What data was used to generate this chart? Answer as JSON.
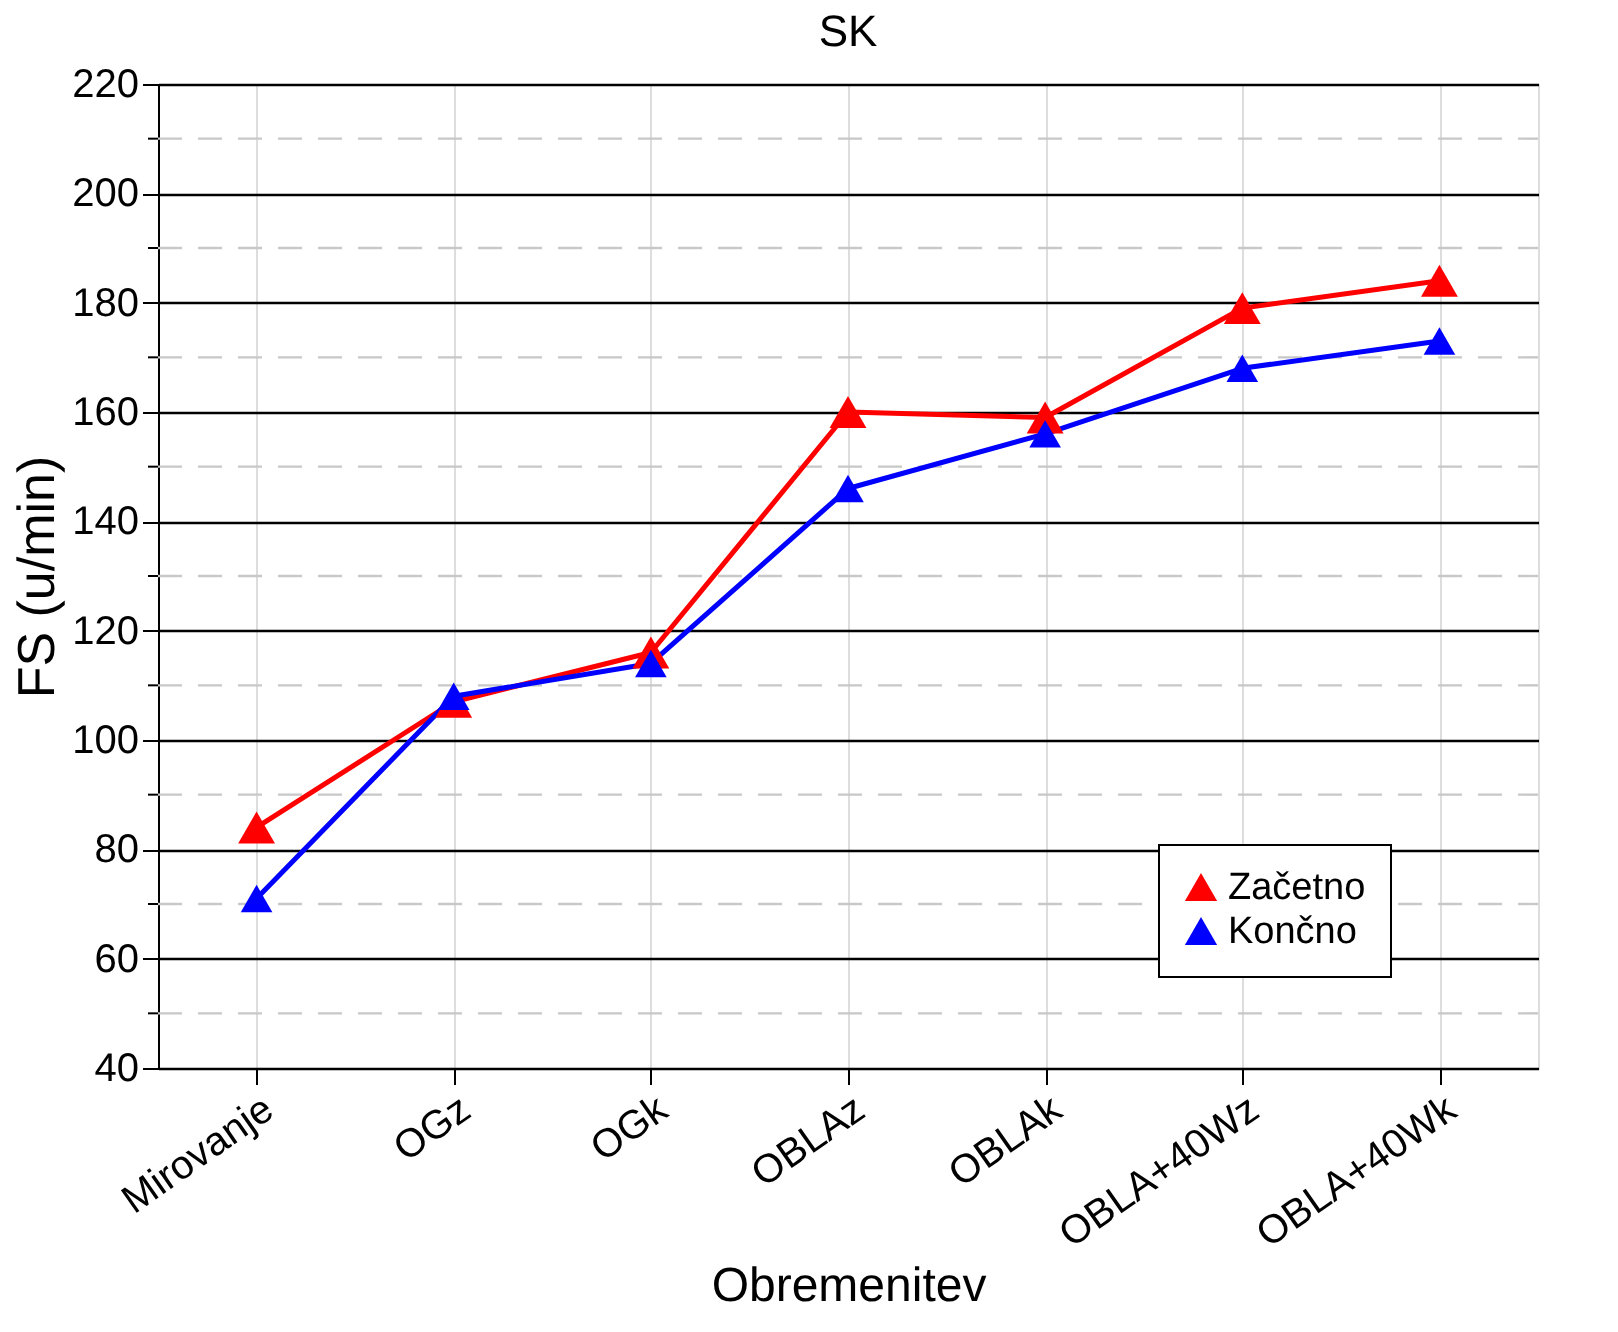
{
  "chart_data": {
    "type": "line",
    "title": "SK",
    "xlabel": "Obremenitev",
    "ylabel": "FS (u/min)",
    "categories": [
      "Mirovanje",
      "OGz",
      "OGk",
      "OBLAz",
      "OBLAk",
      "OBLA+40Wz",
      "OBLA+40Wk"
    ],
    "series": [
      {
        "name": "Začetno",
        "color": "#ff0000",
        "values": [
          84,
          107,
          116,
          160,
          159,
          179,
          184
        ]
      },
      {
        "name": "Končno",
        "color": "#0000ff",
        "values": [
          71,
          108,
          114,
          146,
          156,
          168,
          173
        ]
      }
    ],
    "ylim": [
      40,
      220
    ],
    "yticks": [
      40,
      {
        "value": 50,
        "label": null
      },
      60,
      {
        "value": 70,
        "label": null
      },
      80,
      {
        "value": 90,
        "label": null
      },
      100,
      {
        "value": 110,
        "label": null
      },
      120,
      {
        "value": 130,
        "label": null
      },
      140,
      {
        "value": 150,
        "label": null
      },
      160,
      {
        "value": 170,
        "label": null
      },
      180,
      {
        "value": 190,
        "label": null
      },
      200,
      {
        "value": 210,
        "label": null
      },
      220
    ],
    "grid": true,
    "legend": "bottom right",
    "marker": "triangle",
    "line_style": "solid"
  }
}
